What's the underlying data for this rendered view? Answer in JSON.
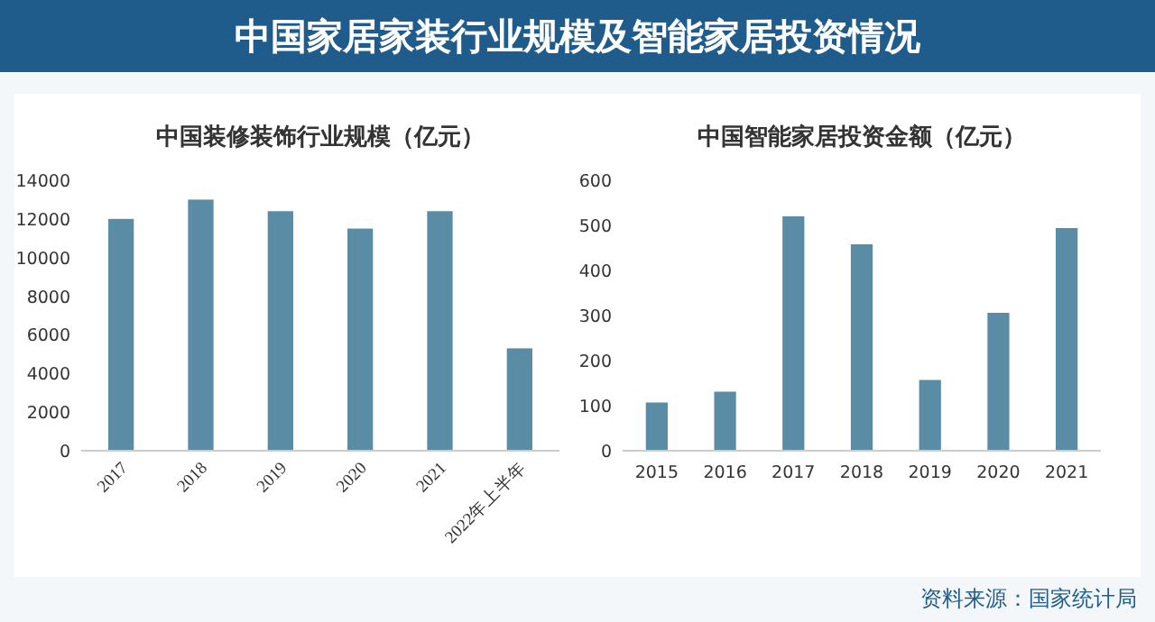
{
  "chart_data": [
    {
      "type": "bar",
      "title": "中国家居家装行业规模及智能家居投资情况",
      "subtitle": "中国装修装饰行业规模（亿元）",
      "categories": [
        "2017",
        "2018",
        "2019",
        "2020",
        "2021",
        "2022年上半年"
      ],
      "values": [
        12000,
        13000,
        12400,
        11500,
        12400,
        5300
      ],
      "color": "#5a8ca6",
      "ylim": [
        0,
        14000
      ],
      "yticks": [
        0,
        2000,
        4000,
        6000,
        8000,
        10000,
        12000,
        14000
      ]
    },
    {
      "type": "bar",
      "title": "中国智能家居投资金额（亿元）",
      "categories": [
        "2015",
        "2016",
        "2017",
        "2018",
        "2019",
        "2020",
        "2021"
      ],
      "values": [
        107,
        131,
        520,
        458,
        157,
        306,
        494
      ],
      "color": "#5a8ca6",
      "ylim": [
        0,
        600
      ],
      "yticks": [
        0,
        100,
        200,
        300,
        400,
        500,
        600
      ],
      "annotations": [
        "资料来源：国家统计局"
      ]
    }
  ]
}
